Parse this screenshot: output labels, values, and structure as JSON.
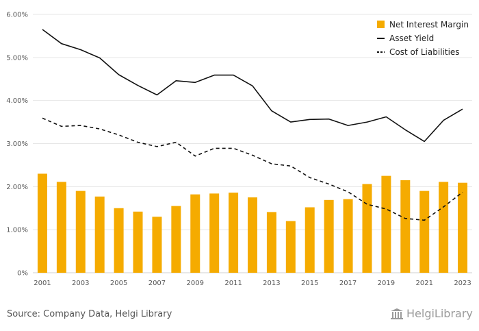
{
  "chart_data": {
    "type": "bar",
    "categories": [
      "2001",
      "2002",
      "2003",
      "2004",
      "2005",
      "2006",
      "2007",
      "2008",
      "2009",
      "2010",
      "2011",
      "2012",
      "2013",
      "2014",
      "2015",
      "2016",
      "2017",
      "2018",
      "2019",
      "2020",
      "2021",
      "2022",
      "2023"
    ],
    "x_tick_labels": [
      "2001",
      "2003",
      "2005",
      "2007",
      "2009",
      "2011",
      "2013",
      "2015",
      "2017",
      "2019",
      "2021",
      "2023"
    ],
    "y_tick_labels": [
      "0%",
      "1.00%",
      "2.00%",
      "3.00%",
      "4.00%",
      "5.00%",
      "6.00%"
    ],
    "ylim": [
      0,
      6
    ],
    "grid": true,
    "legend_position": "top-right",
    "series": [
      {
        "name": "Net Interest Margin",
        "type": "bar",
        "color": "#f5ab00",
        "values": [
          2.3,
          2.11,
          1.9,
          1.77,
          1.5,
          1.42,
          1.3,
          1.55,
          1.82,
          1.84,
          1.86,
          1.75,
          1.41,
          1.2,
          1.52,
          1.69,
          1.71,
          2.06,
          2.25,
          2.15,
          1.9,
          2.11,
          2.09
        ]
      },
      {
        "name": "Asset Yield",
        "type": "line",
        "style": "solid",
        "color": "#111111",
        "values": [
          5.65,
          5.32,
          5.18,
          4.99,
          4.6,
          4.35,
          4.13,
          4.46,
          4.42,
          4.59,
          4.59,
          4.34,
          3.76,
          3.5,
          3.56,
          3.57,
          3.42,
          3.5,
          3.62,
          3.32,
          3.05,
          3.54,
          3.8
        ]
      },
      {
        "name": "Cost of Liabilities",
        "type": "line",
        "style": "dashed",
        "color": "#111111",
        "values": [
          3.59,
          3.4,
          3.42,
          3.34,
          3.2,
          3.03,
          2.93,
          3.03,
          2.71,
          2.89,
          2.89,
          2.73,
          2.53,
          2.48,
          2.21,
          2.06,
          1.88,
          1.59,
          1.48,
          1.26,
          1.22,
          1.53,
          1.87
        ]
      }
    ]
  },
  "footer": {
    "source_text": "Source: Company Data, Helgi Library",
    "logo_text": "HelgiLibrary"
  }
}
